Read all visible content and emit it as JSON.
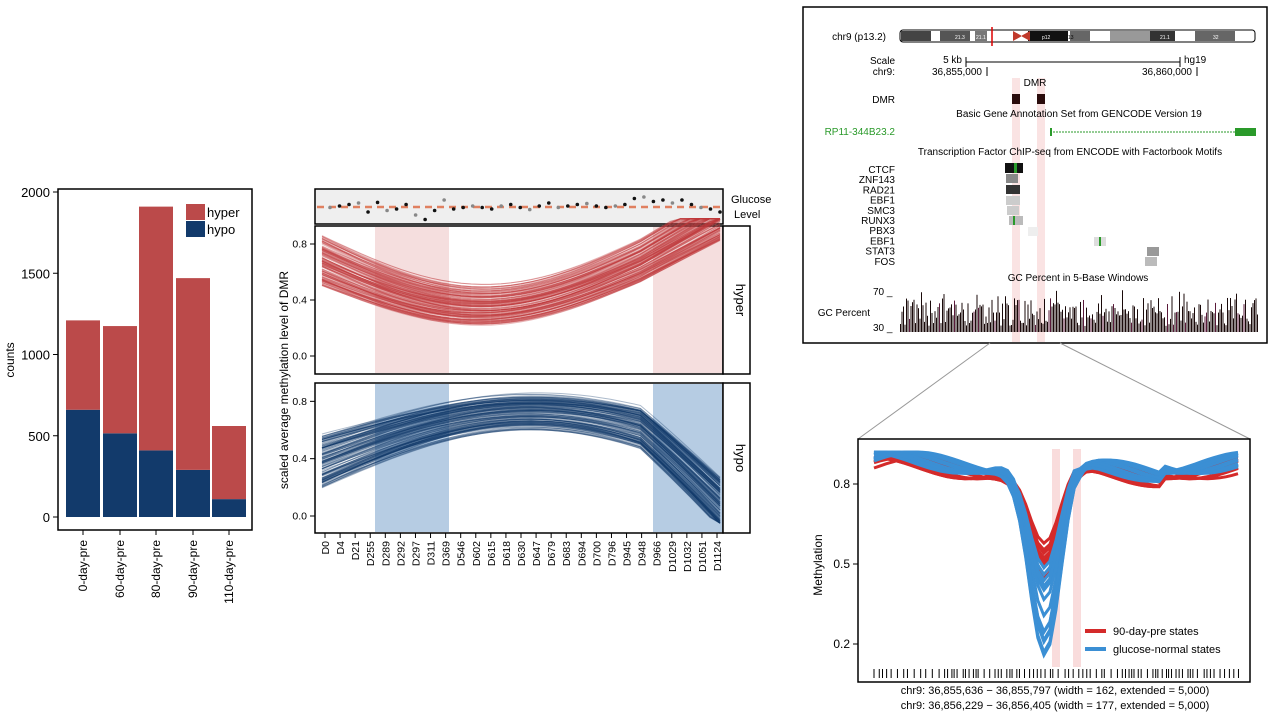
{
  "chart_data": [
    {
      "type": "bar",
      "stacked": true,
      "categories": [
        "0-day-pre",
        "60-day-pre",
        "80-day-pre",
        "90-day-pre",
        "110-day-pre"
      ],
      "series": [
        {
          "name": "hypo",
          "values": [
            660,
            515,
            410,
            290,
            110
          ],
          "color": "#123a6b"
        },
        {
          "name": "hyper",
          "values": [
            550,
            660,
            1500,
            1180,
            450
          ],
          "color": "#bb4a4a"
        }
      ],
      "ylabel": "counts",
      "ylim": [
        0,
        2000
      ],
      "yticks": [
        "0",
        "500",
        "1000",
        "1500",
        "2000"
      ],
      "legend": "top-right"
    },
    {
      "type": "line",
      "ylabel": "scaled average methylation level of DMR",
      "categories": [
        "D0",
        "D4",
        "D21",
        "D255",
        "D289",
        "D292",
        "D297",
        "D311",
        "D369",
        "D546",
        "D602",
        "D615",
        "D618",
        "D630",
        "D647",
        "D679",
        "D683",
        "D694",
        "D700",
        "D796",
        "D945",
        "D948",
        "D966",
        "D1029",
        "D1032",
        "D1051",
        "D1124"
      ],
      "glucose_label": [
        "Glucose",
        "Level"
      ],
      "glucose_points": [
        0.45,
        0.5,
        0.55,
        0.6,
        0.3,
        0.62,
        0.35,
        0.4,
        0.55,
        0.2,
        0.05,
        0.35,
        0.7,
        0.4,
        0.45,
        0.5,
        0.45,
        0.4,
        0.5,
        0.55,
        0.45,
        0.38,
        0.5,
        0.6,
        0.45,
        0.5,
        0.55,
        0.58,
        0.5,
        0.45,
        0.5,
        0.55,
        0.75,
        0.8,
        0.65,
        0.7,
        0.6,
        0.7,
        0.55,
        0.45,
        0.4,
        0.3
      ],
      "panels": [
        {
          "strip": "hyper",
          "yticks": [
            "0.0",
            "0.4",
            "0.8"
          ],
          "color": "#c0393b",
          "shaded": "#f3d9d9"
        },
        {
          "strip": "hypo",
          "yticks": [
            "0.0",
            "0.4",
            "0.8"
          ],
          "color": "#123a6b",
          "shaded": "#b6cce3"
        }
      ],
      "shaded_ranges": [
        [
          "D289",
          "D369"
        ],
        [
          "D966",
          "D1124"
        ]
      ]
    },
    {
      "type": "genome_browser",
      "chrom_label": "chr9 (p13.2)",
      "band_labels": [
        "21.3",
        "21.1",
        "p12",
        "13",
        "21.1",
        "32"
      ],
      "scale_label": "Scale",
      "scale_chr": "chr9:",
      "scale_kb": "5 kb",
      "assembly": "hg19",
      "pos_left": "36,855,000",
      "pos_right": "36,860,000",
      "dmr_header": "DMR",
      "dmr_track": "DMR",
      "gencode_header": "Basic Gene Annotation Set from GENCODE Version 19",
      "gene_name": "RP11-344B23.2",
      "tf_header": "Transcription Factor ChIP-seq from ENCODE with Factorbook Motifs",
      "tfs": [
        "CTCF",
        "ZNF143",
        "RAD21",
        "EBF1",
        "SMC3",
        "RUNX3",
        "PBX3",
        "EBF1",
        "STAT3",
        "FOS"
      ],
      "gc_header": "GC Percent in 5-Base Windows",
      "gc_label": "GC Percent",
      "gc_max": "70 _",
      "gc_min": "30 _"
    },
    {
      "type": "line",
      "ylabel": "Methylation",
      "yticks": [
        "0.2",
        "0.5",
        "0.8"
      ],
      "legend": "bottom-right",
      "series": [
        {
          "name": "90-day-pre states",
          "color": "#d42a2a"
        },
        {
          "name": "glucose-normal states",
          "color": "#3b8fd4"
        }
      ],
      "footer": [
        "chr9: 36,855,636 − 36,855,797 (width = 162, extended = 5,000)",
        "chr9: 36,856,229 − 36,856,405 (width = 177, extended = 5,000)"
      ]
    }
  ]
}
